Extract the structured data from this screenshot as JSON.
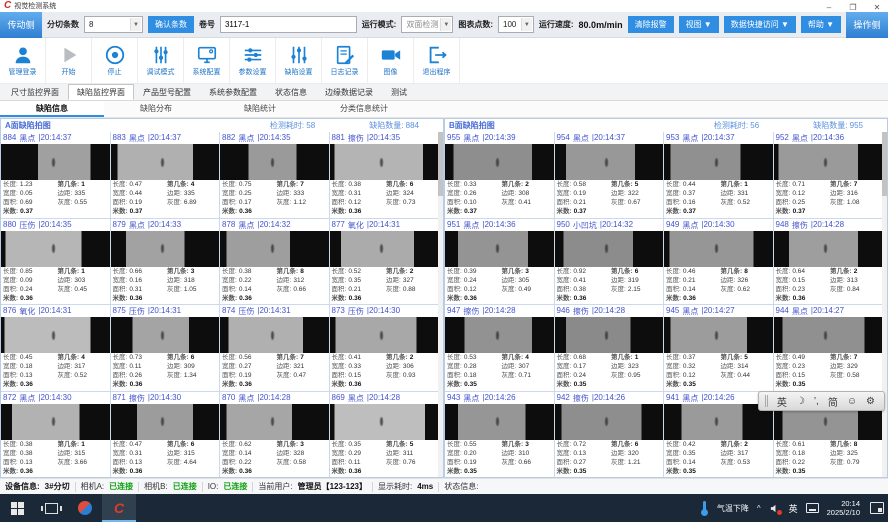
{
  "window": {
    "title": "视觉检测系统",
    "minimize": "–",
    "maximize": "❐",
    "close": "✕"
  },
  "control_bar": {
    "side_button": "传动侧",
    "slit_count_label": "分切条数",
    "slit_count_value": "8",
    "confirm_button": "确认条数",
    "roll_label": "卷号",
    "roll_value": "3117-1",
    "run_mode_label": "运行模式:",
    "run_mode_value": "双面检测",
    "chart_points_label": "图表点数:",
    "chart_points_value": "100",
    "speed_label": "运行速度:",
    "speed_value": "80.0m/min",
    "clear_alarm_button": "清除报警",
    "view_button": "视图 ▼",
    "data_access_button": "数据快捷访问 ▼",
    "help_button": "帮助 ▼",
    "operator_side_button": "操作侧"
  },
  "toolbar": {
    "items": [
      {
        "label": "管理登录",
        "icon": "user"
      },
      {
        "label": "开始",
        "icon": "play"
      },
      {
        "label": "停止",
        "icon": "stop"
      },
      {
        "label": "调试模式",
        "icon": "slidersV"
      },
      {
        "label": "系统配置",
        "icon": "monitor"
      },
      {
        "label": "参数设置",
        "icon": "slidersH"
      },
      {
        "label": "缺陷设置",
        "icon": "slidersV2"
      },
      {
        "label": "日志记录",
        "icon": "log"
      },
      {
        "label": "图像",
        "icon": "camera"
      },
      {
        "label": "退出程序",
        "icon": "exit"
      }
    ]
  },
  "main_tabs": {
    "active_index": 1,
    "items": [
      "尺寸监控界面",
      "缺陷监控界面",
      "产品型号配置",
      "系统参数配置",
      "状态信息",
      "边缘数据记录",
      "测试"
    ]
  },
  "sub_tabs": {
    "active_index": 0,
    "items": [
      "缺陷信息",
      "缺陷分布",
      "缺陷统计",
      "分类信息统计"
    ]
  },
  "cell_labels": {
    "length": "长度:",
    "width": "宽度:",
    "area": "面积:",
    "meter": "米数:",
    "strip": "第几条:",
    "margin": "边距:",
    "gray": "灰度:"
  },
  "panels": [
    {
      "title": "A面缺陷拍图",
      "elapsed_label": "检测耗时:",
      "elapsed": "58",
      "count_label": "缺陷数量:",
      "count": "884",
      "cells": [
        {
          "id": "884",
          "type": "黑点",
          "time": "20:14:37",
          "length": "1.23",
          "width": "0.05",
          "area": "0.69",
          "meter": "0.37",
          "strip": "1",
          "margin": "335",
          "gray": "0.55",
          "img": {
            "tone": "#a0a0a0",
            "l": 34,
            "r": 18
          }
        },
        {
          "id": "883",
          "type": "黑点",
          "time": "20:14:37",
          "length": "0.47",
          "width": "0.44",
          "area": "0.19",
          "meter": "0.37",
          "strip": "4",
          "margin": "335",
          "gray": "6.89",
          "img": {
            "tone": "#b0b0b0",
            "l": 6,
            "r": 24
          }
        },
        {
          "id": "882",
          "type": "黑点",
          "time": "20:14:35",
          "length": "0.75",
          "width": "0.25",
          "area": "0.17",
          "meter": "0.36",
          "strip": "7",
          "margin": "333",
          "gray": "1.12",
          "img": {
            "tone": "#9a9a9a",
            "l": 26,
            "r": 30
          }
        },
        {
          "id": "881",
          "type": "擦伤",
          "time": "20:14:35",
          "length": "0.38",
          "width": "0.31",
          "area": "0.12",
          "meter": "0.36",
          "strip": "6",
          "margin": "324",
          "gray": "0.73",
          "img": {
            "tone": "#b4b4b4",
            "l": 4,
            "r": 14
          }
        },
        {
          "id": "880",
          "type": "压伤",
          "time": "20:14:35",
          "length": "0.85",
          "width": "0.09",
          "area": "0.24",
          "meter": "0.36",
          "strip": "1",
          "margin": "303",
          "gray": "0.45",
          "img": {
            "tone": "#b6b6b6",
            "l": 4,
            "r": 26
          }
        },
        {
          "id": "879",
          "type": "黑点",
          "time": "20:14:33",
          "length": "0.66",
          "width": "0.16",
          "area": "0.31",
          "meter": "0.36",
          "strip": "3",
          "margin": "318",
          "gray": "1.05",
          "img": {
            "tone": "#a2a2a2",
            "l": 14,
            "r": 32
          }
        },
        {
          "id": "878",
          "type": "黑点",
          "time": "20:14:32",
          "length": "0.38",
          "width": "0.22",
          "area": "0.14",
          "meter": "0.36",
          "strip": "8",
          "margin": "312",
          "gray": "0.66",
          "img": {
            "tone": "#9e9e9e",
            "l": 6,
            "r": 36
          }
        },
        {
          "id": "877",
          "type": "氧化",
          "time": "20:14:31",
          "length": "0.52",
          "width": "0.35",
          "area": "0.21",
          "meter": "0.36",
          "strip": "2",
          "margin": "327",
          "gray": "0.88",
          "img": {
            "tone": "#ababab",
            "l": 10,
            "r": 22
          }
        },
        {
          "id": "876",
          "type": "氧化",
          "time": "20:14:31",
          "length": "0.45",
          "width": "0.18",
          "area": "0.13",
          "meter": "0.36",
          "strip": "4",
          "margin": "317",
          "gray": "0.52",
          "img": {
            "tone": "#bcbcbc",
            "l": 3,
            "r": 18
          }
        },
        {
          "id": "875",
          "type": "压伤",
          "time": "20:14:31",
          "length": "0.73",
          "width": "0.11",
          "area": "0.26",
          "meter": "0.36",
          "strip": "6",
          "margin": "309",
          "gray": "1.34",
          "img": {
            "tone": "#a4a4a4",
            "l": 20,
            "r": 28
          }
        },
        {
          "id": "874",
          "type": "压伤",
          "time": "20:14:31",
          "length": "0.56",
          "width": "0.27",
          "area": "0.19",
          "meter": "0.36",
          "strip": "7",
          "margin": "321",
          "gray": "0.47",
          "img": {
            "tone": "#b0b0b0",
            "l": 8,
            "r": 24
          }
        },
        {
          "id": "873",
          "type": "压伤",
          "time": "20:14:30",
          "length": "0.41",
          "width": "0.33",
          "area": "0.15",
          "meter": "0.36",
          "strip": "2",
          "margin": "306",
          "gray": "0.93",
          "img": {
            "tone": "#a8a8a8",
            "l": 5,
            "r": 20
          }
        },
        {
          "id": "872",
          "type": "黑点",
          "time": "20:14:30",
          "length": "0.38",
          "width": "0.38",
          "area": "0.13",
          "meter": "0.36",
          "strip": "1",
          "margin": "315",
          "gray": "3.66",
          "img": {
            "tone": "#b2b2b2",
            "l": 10,
            "r": 28
          }
        },
        {
          "id": "871",
          "type": "擦伤",
          "time": "20:14:30",
          "length": "0.47",
          "width": "0.31",
          "area": "0.13",
          "meter": "0.36",
          "strip": "6",
          "margin": "315",
          "gray": "4.64",
          "img": {
            "tone": "#9c9c9c",
            "l": 24,
            "r": 24
          }
        },
        {
          "id": "870",
          "type": "黑点",
          "time": "20:14:28",
          "length": "0.62",
          "width": "0.14",
          "area": "0.22",
          "meter": "0.36",
          "strip": "3",
          "margin": "328",
          "gray": "0.58",
          "img": {
            "tone": "#a6a6a6",
            "l": 6,
            "r": 34
          }
        },
        {
          "id": "869",
          "type": "黑点",
          "time": "20:14:28",
          "length": "0.35",
          "width": "0.29",
          "area": "0.11",
          "meter": "0.36",
          "strip": "5",
          "margin": "311",
          "gray": "0.76",
          "img": {
            "tone": "#bebebe",
            "l": 4,
            "r": 12
          }
        }
      ]
    },
    {
      "title": "B面缺陷拍图",
      "elapsed_label": "检测耗时:",
      "elapsed": "56",
      "count_label": "缺陷数量:",
      "count": "955",
      "cells": [
        {
          "id": "955",
          "type": "黑点",
          "time": "20:14:39",
          "length": "0.33",
          "width": "0.26",
          "area": "0.10",
          "meter": "0.37",
          "strip": "2",
          "margin": "308",
          "gray": "0.41",
          "img": {
            "tone": "#8e8e8e",
            "l": 8,
            "r": 20
          }
        },
        {
          "id": "954",
          "type": "黑点",
          "time": "20:14:37",
          "length": "0.58",
          "width": "0.19",
          "area": "0.21",
          "meter": "0.37",
          "strip": "5",
          "margin": "322",
          "gray": "0.67",
          "img": {
            "tone": "#989898",
            "l": 10,
            "r": 26
          }
        },
        {
          "id": "953",
          "type": "黑点",
          "time": "20:14:37",
          "length": "0.44",
          "width": "0.37",
          "area": "0.16",
          "meter": "0.37",
          "strip": "1",
          "margin": "331",
          "gray": "0.52",
          "img": {
            "tone": "#909090",
            "l": 6,
            "r": 30
          }
        },
        {
          "id": "952",
          "type": "黑点",
          "time": "20:14:36",
          "length": "0.71",
          "width": "0.12",
          "area": "0.25",
          "meter": "0.37",
          "strip": "7",
          "margin": "316",
          "gray": "1.08",
          "img": {
            "tone": "#9a9a9a",
            "l": 4,
            "r": 22
          }
        },
        {
          "id": "951",
          "type": "黑点",
          "time": "20:14:36",
          "length": "0.39",
          "width": "0.24",
          "area": "0.12",
          "meter": "0.36",
          "strip": "3",
          "margin": "305",
          "gray": "0.49",
          "img": {
            "tone": "#949494",
            "l": 12,
            "r": 24
          }
        },
        {
          "id": "950",
          "type": "小凹坑",
          "time": "20:14:32",
          "length": "0.92",
          "width": "0.41",
          "area": "0.38",
          "meter": "0.36",
          "strip": "6",
          "margin": "319",
          "gray": "2.15",
          "img": {
            "tone": "#8c8c8c",
            "l": 8,
            "r": 28
          }
        },
        {
          "id": "949",
          "type": "黑点",
          "time": "20:14:30",
          "length": "0.46",
          "width": "0.21",
          "area": "0.14",
          "meter": "0.36",
          "strip": "8",
          "margin": "326",
          "gray": "0.62",
          "img": {
            "tone": "#969696",
            "l": 5,
            "r": 18
          }
        },
        {
          "id": "948",
          "type": "擦伤",
          "time": "20:14:28",
          "length": "0.64",
          "width": "0.15",
          "area": "0.23",
          "meter": "0.36",
          "strip": "2",
          "margin": "313",
          "gray": "0.84",
          "img": {
            "tone": "#9e9e9e",
            "l": 14,
            "r": 22
          }
        },
        {
          "id": "947",
          "type": "擦伤",
          "time": "20:14:28",
          "length": "0.53",
          "width": "0.28",
          "area": "0.18",
          "meter": "0.35",
          "strip": "4",
          "margin": "307",
          "gray": "0.71",
          "img": {
            "tone": "#929292",
            "l": 18,
            "r": 20
          }
        },
        {
          "id": "946",
          "type": "擦伤",
          "time": "20:14:28",
          "length": "0.68",
          "width": "0.17",
          "area": "0.24",
          "meter": "0.35",
          "strip": "1",
          "margin": "323",
          "gray": "0.95",
          "img": {
            "tone": "#8a8a8a",
            "l": 10,
            "r": 30
          }
        },
        {
          "id": "945",
          "type": "黑点",
          "time": "20:14:27",
          "length": "0.37",
          "width": "0.32",
          "area": "0.12",
          "meter": "0.35",
          "strip": "5",
          "margin": "314",
          "gray": "0.44",
          "img": {
            "tone": "#9c9c9c",
            "l": 6,
            "r": 24
          }
        },
        {
          "id": "944",
          "type": "黑点",
          "time": "20:14:27",
          "length": "0.49",
          "width": "0.23",
          "area": "0.15",
          "meter": "0.35",
          "strip": "7",
          "margin": "329",
          "gray": "0.58",
          "img": {
            "tone": "#909090",
            "l": 8,
            "r": 16
          }
        },
        {
          "id": "943",
          "type": "黑点",
          "time": "20:14:26",
          "length": "0.55",
          "width": "0.20",
          "area": "0.19",
          "meter": "0.35",
          "strip": "3",
          "margin": "310",
          "gray": "0.66",
          "img": {
            "tone": "#969696",
            "l": 12,
            "r": 26
          }
        },
        {
          "id": "942",
          "type": "擦伤",
          "time": "20:14:26",
          "length": "0.72",
          "width": "0.13",
          "area": "0.27",
          "meter": "0.35",
          "strip": "6",
          "margin": "320",
          "gray": "1.21",
          "img": {
            "tone": "#8e8e8e",
            "l": 6,
            "r": 20
          }
        },
        {
          "id": "941",
          "type": "黑点",
          "time": "20:14:26",
          "length": "0.42",
          "width": "0.35",
          "area": "0.14",
          "meter": "0.35",
          "strip": "2",
          "margin": "317",
          "gray": "0.53",
          "img": {
            "tone": "#9a9a9a",
            "l": 16,
            "r": 28
          }
        },
        {
          "id": "940",
          "type": "擦伤",
          "time": "20:14:26",
          "length": "0.61",
          "width": "0.18",
          "area": "0.22",
          "meter": "0.35",
          "strip": "8",
          "margin": "325",
          "gray": "0.79",
          "img": {
            "tone": "#949494",
            "l": 8,
            "r": 22
          }
        }
      ]
    }
  ],
  "status_bar": {
    "device_label": "设备信息:",
    "device": "3#分切",
    "camA_label": "相机A:",
    "camA": "已连接",
    "camB_label": "相机B:",
    "camB": "已连接",
    "io_label": "IO:",
    "io": "已连接",
    "user_label": "当前用户:",
    "user": "管理员【123-123】",
    "display_label": "显示耗时:",
    "display": "4ms",
    "status_label": "状态信息:",
    "connected_color": "#0fa00f"
  },
  "ime_bar": {
    "items": [
      "英",
      "☽",
      "’,",
      "简",
      "☺",
      "⚙"
    ]
  },
  "taskbar": {
    "weather": "气温下降",
    "tray_expand": "^",
    "lang": "英",
    "time": "20:14",
    "date": "2025/2/10"
  },
  "colors": {
    "accent_blue": "#2f8de2",
    "header_blue": "#4a6fd6",
    "cell_text_blue": "#4353cf",
    "taskbar_bg": "#1b2838",
    "logo_red": "#d42b1e"
  }
}
